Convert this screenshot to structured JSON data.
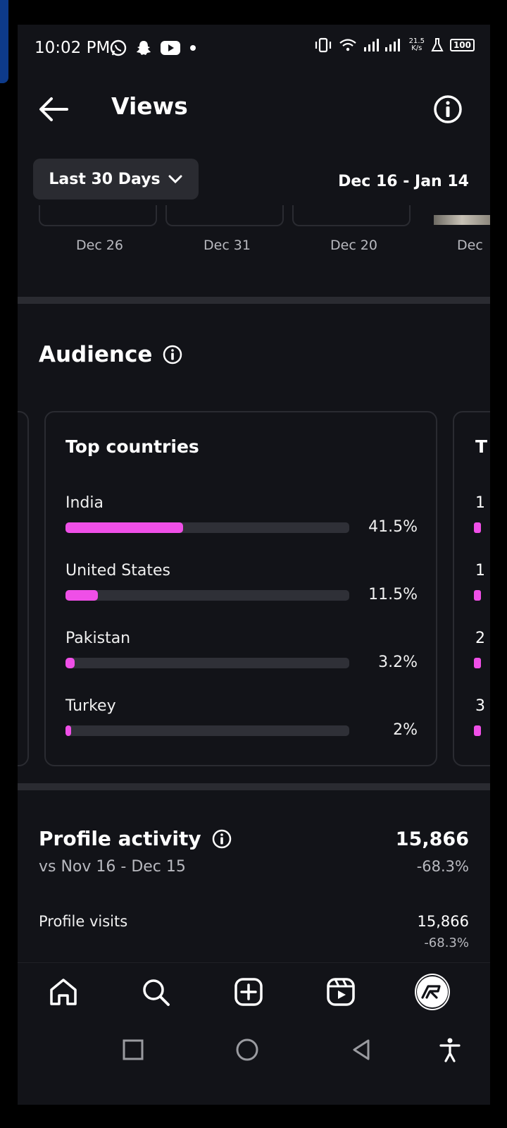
{
  "status_bar": {
    "time": "10:02 PM",
    "net_speed_value": "21.5",
    "net_speed_unit": "K/s",
    "battery": "100"
  },
  "header": {
    "title": "Views"
  },
  "range": {
    "label": "Last 30 Days",
    "dates": "Dec 16 - Jan 14"
  },
  "post_dates": [
    "Dec 26",
    "Dec 31",
    "Dec 20",
    "Dec"
  ],
  "audience": {
    "title": "Audience",
    "card_title": "Top countries",
    "countries": [
      {
        "name": "India",
        "percent_label": "41.5%",
        "value": 41.5
      },
      {
        "name": "United States",
        "percent_label": "11.5%",
        "value": 11.5
      },
      {
        "name": "Pakistan",
        "percent_label": "3.2%",
        "value": 3.2
      },
      {
        "name": "Turkey",
        "percent_label": "2%",
        "value": 2
      }
    ],
    "next_card_peek": {
      "title_letter": "T",
      "row_letters": [
        "1",
        "1",
        "2",
        "3"
      ]
    }
  },
  "profile_activity": {
    "title": "Profile activity",
    "comparison": "vs Nov 16 - Dec 15",
    "total": "15,866",
    "change": "-68.3%",
    "rows": [
      {
        "label": "Profile visits",
        "total": "15,866",
        "change": "-68.3%"
      }
    ]
  },
  "colors": {
    "accent": "#ef4fe7",
    "background": "#121318",
    "track": "#2f3037"
  }
}
